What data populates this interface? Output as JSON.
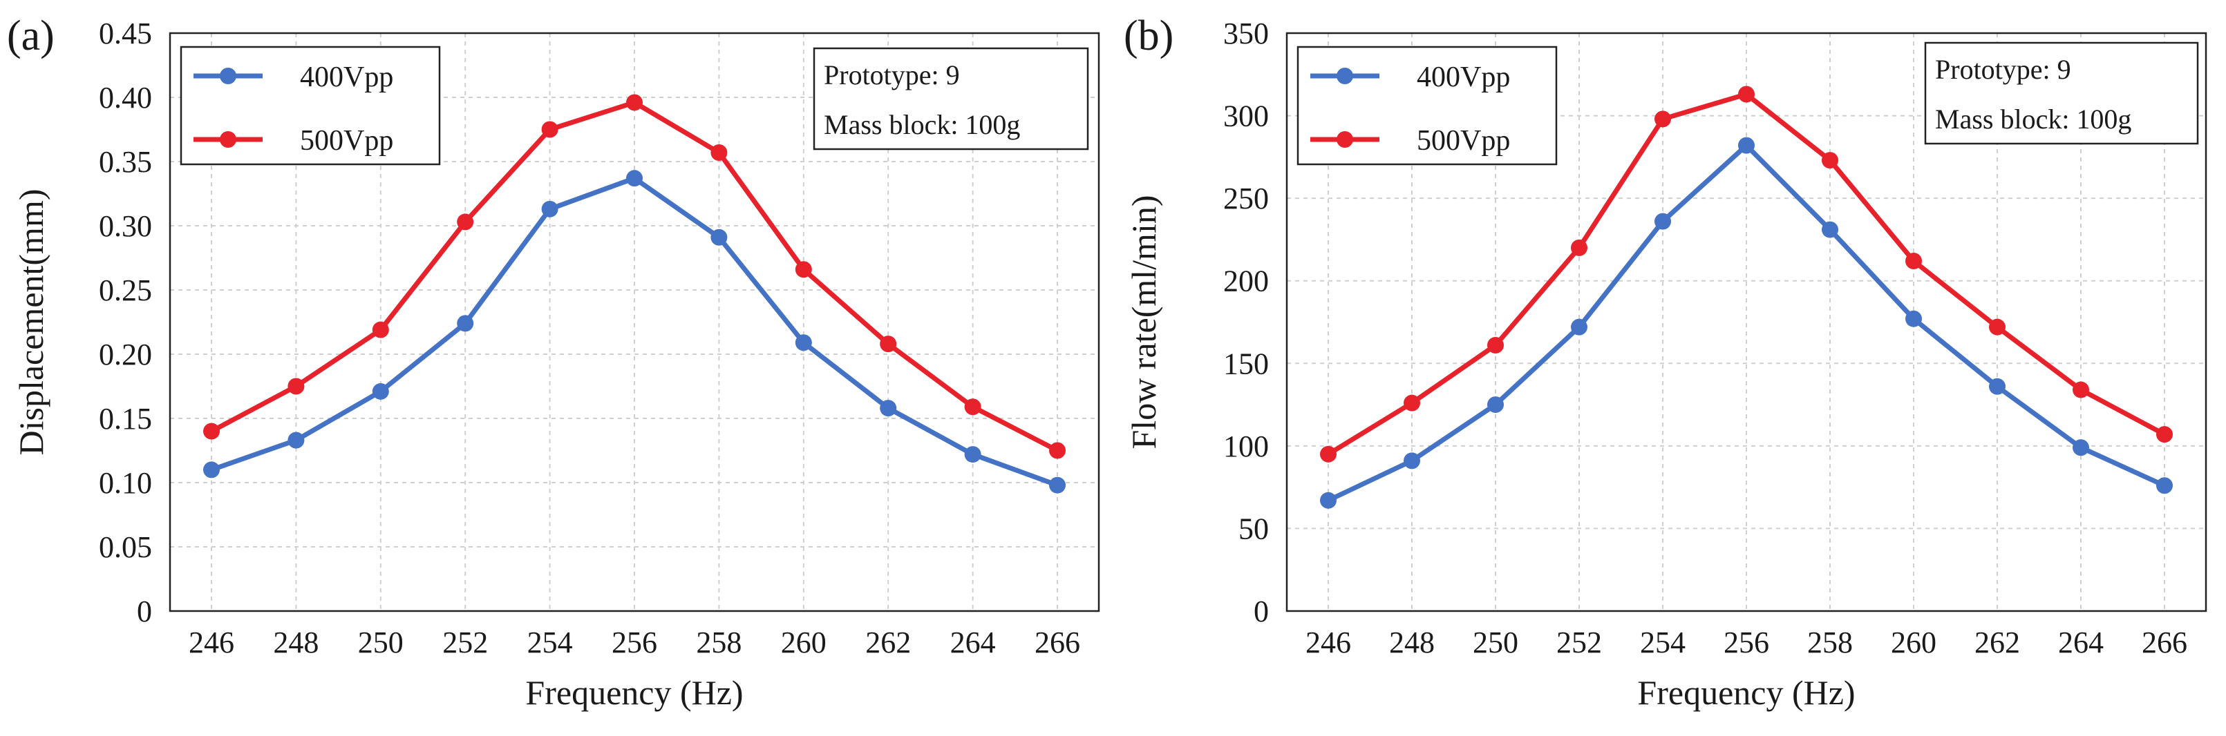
{
  "colors": {
    "s400": "#4472C4",
    "s500": "#E8222B"
  },
  "chart_data": [
    {
      "panel_label": "(a)",
      "type": "line",
      "xlabel": "Frequency (Hz)",
      "ylabel": "Displacement(mm)",
      "x": [
        246,
        248,
        250,
        252,
        254,
        256,
        258,
        260,
        262,
        264,
        266
      ],
      "x_tick_labels": [
        "246",
        "248",
        "250",
        "252",
        "254",
        "256",
        "258",
        "260",
        "262",
        "264",
        "266"
      ],
      "ylim": [
        0,
        0.45
      ],
      "y_ticks": [
        0,
        0.05,
        0.1,
        0.15,
        0.2,
        0.25,
        0.3,
        0.35,
        0.4,
        0.45
      ],
      "y_tick_labels": [
        "0",
        "0.05",
        "0.10",
        "0.15",
        "0.20",
        "0.25",
        "0.30",
        "0.35",
        "0.40",
        "0.45"
      ],
      "grid": true,
      "legend_position": "top-left",
      "series": [
        {
          "name": "400Vpp",
          "values": [
            0.11,
            0.133,
            0.171,
            0.224,
            0.313,
            0.337,
            0.291,
            0.209,
            0.158,
            0.122,
            0.098
          ]
        },
        {
          "name": "500Vpp",
          "values": [
            0.14,
            0.175,
            0.219,
            0.303,
            0.375,
            0.396,
            0.357,
            0.266,
            0.208,
            0.159,
            0.125
          ]
        }
      ],
      "info_box": {
        "position": "top-right",
        "lines": [
          "Prototype: 9",
          "Mass block: 100g"
        ]
      }
    },
    {
      "panel_label": "(b)",
      "type": "line",
      "xlabel": "Frequency (Hz)",
      "ylabel": "Flow rate(ml/min)",
      "x": [
        246,
        248,
        250,
        252,
        254,
        256,
        258,
        260,
        262,
        264,
        266
      ],
      "x_tick_labels": [
        "246",
        "248",
        "250",
        "252",
        "254",
        "256",
        "258",
        "260",
        "262",
        "264",
        "266"
      ],
      "ylim": [
        0,
        350
      ],
      "y_ticks": [
        0,
        50,
        100,
        150,
        200,
        250,
        300,
        350
      ],
      "y_tick_labels": [
        "0",
        "50",
        "100",
        "150",
        "200",
        "250",
        "300",
        "350"
      ],
      "grid": true,
      "legend_position": "top-left",
      "series": [
        {
          "name": "400Vpp",
          "values": [
            67,
            91,
            125,
            172,
            236,
            282,
            231,
            177,
            136,
            99,
            76
          ]
        },
        {
          "name": "500Vpp",
          "values": [
            95,
            126,
            161,
            220,
            298,
            313,
            273,
            212,
            172,
            134,
            107
          ]
        }
      ],
      "info_box": {
        "position": "top-right",
        "lines": [
          "Prototype: 9",
          "Mass block: 100g"
        ]
      }
    }
  ]
}
